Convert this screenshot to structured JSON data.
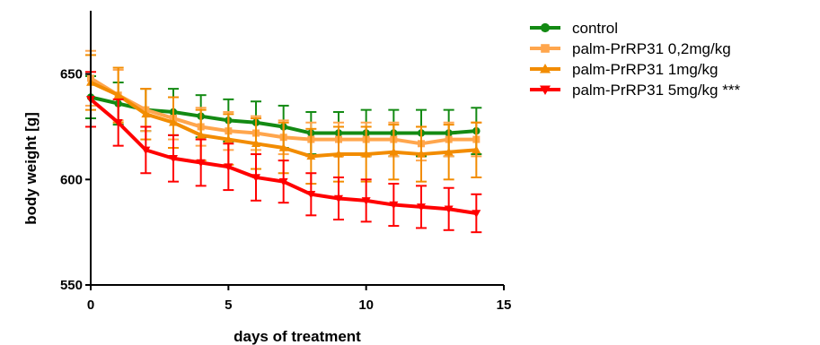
{
  "chart_data": {
    "type": "line",
    "title": "",
    "xlabel": "days of treatment",
    "ylabel": "body weight [g]",
    "xlim": [
      0,
      15
    ],
    "ylim": [
      550,
      680
    ],
    "x_ticks": [
      0,
      5,
      10,
      15
    ],
    "y_ticks": [
      550,
      600,
      650
    ],
    "x_tick_labels": [
      "0",
      "5",
      "10",
      "15"
    ],
    "y_tick_labels": [
      "550",
      "600",
      "650"
    ],
    "grid": false,
    "legend_position": "top-right",
    "x": [
      0,
      1,
      2,
      3,
      4,
      5,
      6,
      7,
      8,
      9,
      10,
      11,
      12,
      13,
      14
    ],
    "series": [
      {
        "name": "control",
        "color": "#138a13",
        "marker": "circle",
        "values": [
          639,
          636,
          633,
          632,
          630,
          628,
          627,
          625,
          622,
          622,
          622,
          622,
          622,
          622,
          623
        ],
        "errors": [
          10,
          10,
          10,
          11,
          10,
          10,
          10,
          10,
          10,
          10,
          11,
          11,
          11,
          11,
          11
        ]
      },
      {
        "name": "palm-PrRP31 0,2mg/kg",
        "color": "#ffa64d",
        "marker": "square",
        "values": [
          648,
          640,
          633,
          629,
          625,
          623,
          622,
          620,
          619,
          619,
          619,
          619,
          617,
          619,
          619
        ],
        "errors": [
          13,
          12,
          10,
          10,
          9,
          9,
          8,
          8,
          8,
          8,
          8,
          8,
          8,
          8,
          8
        ]
      },
      {
        "name": "palm-PrRP31 1mg/kg",
        "color": "#f28c00",
        "marker": "triangle-up",
        "values": [
          646,
          640,
          631,
          627,
          621,
          619,
          617,
          615,
          611,
          612,
          612,
          613,
          612,
          613,
          614
        ],
        "errors": [
          13,
          13,
          12,
          12,
          12,
          12,
          12,
          12,
          13,
          13,
          13,
          13,
          13,
          13,
          13
        ]
      },
      {
        "name": "palm-PrRP31 5mg/kg ***",
        "color": "#ff0000",
        "marker": "triangle-down",
        "values": [
          638,
          627,
          614,
          610,
          608,
          606,
          601,
          599,
          593,
          591,
          590,
          588,
          587,
          586,
          584
        ],
        "errors": [
          13,
          11,
          11,
          11,
          11,
          11,
          11,
          10,
          10,
          10,
          10,
          10,
          10,
          10,
          9
        ]
      }
    ]
  }
}
